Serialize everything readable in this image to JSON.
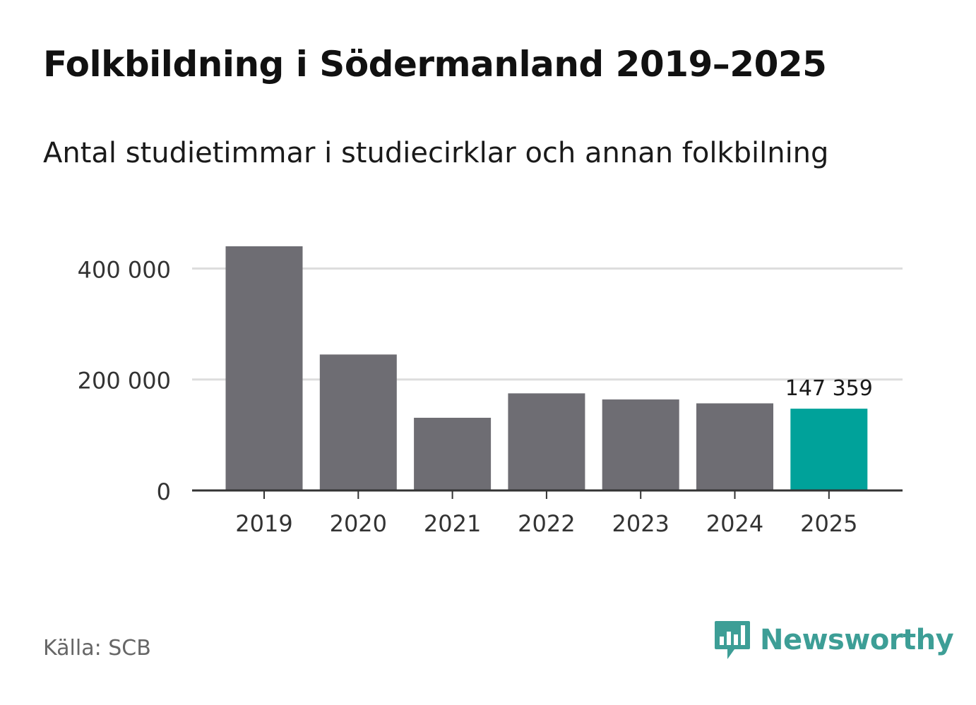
{
  "header": {
    "title": "Folkbildning i Södermanland 2019–2025",
    "subtitle": "Antal studietimmar i studiecirklar och annan folkbilning"
  },
  "footer": {
    "source": "Källa: SCB",
    "brand": "Newsworthy",
    "brand_icon": "bar-chart-speech-bubble-icon"
  },
  "colors": {
    "bar": "#6e6d73",
    "highlight": "#00a29a",
    "grid": "#dddddd",
    "axis": "#333333",
    "brand": "#3d9e96"
  },
  "chart_data": {
    "type": "bar",
    "title": "Folkbildning i Södermanland 2019–2025",
    "subtitle": "Antal studietimmar i studiecirklar och annan folkbilning",
    "xlabel": "",
    "ylabel": "",
    "categories": [
      "2019",
      "2020",
      "2021",
      "2022",
      "2023",
      "2024",
      "2025"
    ],
    "values": [
      440000,
      245000,
      131000,
      175000,
      164000,
      157000,
      147359
    ],
    "highlight_index": 6,
    "highlight_label": "147 359",
    "ylim": [
      0,
      440000
    ],
    "yticks": [
      0,
      200000,
      400000
    ],
    "ytick_labels": [
      "0",
      "200 000",
      "400 000"
    ],
    "grid": true
  }
}
